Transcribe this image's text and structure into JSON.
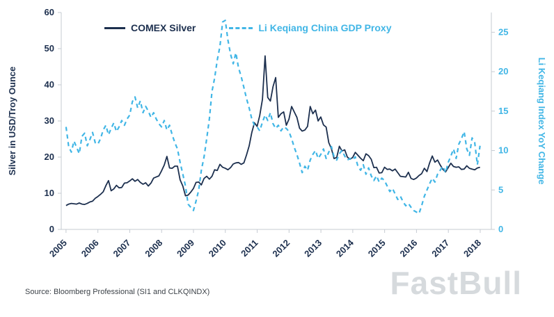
{
  "chart_data": {
    "type": "line",
    "title": "",
    "x_start": 2005,
    "x_step_years": 0.0833,
    "x_ticks": [
      2005,
      2006,
      2007,
      2008,
      2009,
      2010,
      2011,
      2012,
      2013,
      2014,
      2015,
      2016,
      2017,
      2018
    ],
    "left": {
      "label": "Silver in USD/Troy Ounce",
      "ticks": [
        0,
        10,
        20,
        30,
        40,
        50,
        60
      ],
      "lim": [
        0,
        60
      ],
      "color": "#1c2f4e"
    },
    "right": {
      "label": "Li Keqiang Index YoY Change",
      "ticks": [
        0,
        5,
        10,
        15,
        20,
        25
      ],
      "lim": [
        0,
        27.5
      ],
      "color": "#41b6e6"
    },
    "series": [
      {
        "name": "COMEX Silver",
        "axis": "left",
        "color": "#1c2f4e",
        "dash": null,
        "values": [
          6.6,
          7.0,
          7.2,
          7.1,
          7.0,
          7.3,
          7.0,
          6.9,
          7.2,
          7.6,
          7.8,
          8.6,
          9.1,
          9.7,
          10.4,
          12.1,
          13.5,
          10.7,
          11.2,
          12.2,
          11.5,
          11.6,
          12.8,
          12.9,
          13.4,
          14.0,
          13.3,
          13.8,
          13.0,
          12.5,
          12.9,
          12.0,
          12.8,
          14.2,
          14.5,
          14.8,
          16.2,
          17.8,
          20.2,
          17.0,
          16.9,
          17.5,
          17.5,
          13.7,
          12.0,
          9.3,
          9.5,
          10.3,
          11.3,
          13.0,
          13.1,
          12.3,
          14.1,
          14.7,
          13.9,
          14.7,
          16.5,
          16.3,
          18.0,
          17.2,
          16.9,
          16.5,
          17.1,
          18.1,
          18.4,
          18.5,
          18.0,
          18.4,
          20.6,
          23.1,
          26.8,
          29.5,
          28.5,
          31.5,
          36.0,
          48.0,
          36.5,
          35.5,
          39.5,
          42.0,
          31.0,
          32.0,
          32.5,
          28.8,
          30.5,
          34.0,
          32.5,
          31.0,
          28.0,
          27.2,
          27.5,
          28.5,
          34.0,
          32.0,
          33.0,
          30.0,
          31.1,
          28.9,
          28.3,
          24.0,
          22.3,
          19.6,
          19.9,
          23.0,
          21.7,
          22.0,
          20.0,
          19.4,
          19.9,
          21.3,
          20.5,
          19.7,
          19.0,
          20.9,
          20.4,
          19.4,
          17.1,
          17.2,
          15.6,
          15.7,
          17.2,
          16.6,
          16.7,
          16.2,
          16.7,
          15.7,
          14.7,
          14.6,
          14.5,
          15.8,
          14.1,
          13.8,
          14.2,
          14.9,
          15.4,
          16.9,
          16.0,
          18.4,
          20.3,
          18.6,
          19.2,
          17.8,
          16.6,
          15.9,
          17.1,
          18.3,
          17.4,
          17.2,
          17.3,
          16.6,
          16.7,
          17.6,
          16.9,
          16.7,
          16.5,
          17.0,
          17.2
        ]
      },
      {
        "name": "Li Keqiang China GDP Proxy",
        "axis": "right",
        "color": "#41b6e6",
        "dash": "6,5",
        "values": [
          13.0,
          10.5,
          9.8,
          11.2,
          10.4,
          9.6,
          11.8,
          12.2,
          10.6,
          11.4,
          12.3,
          11.0,
          10.8,
          11.5,
          12.6,
          13.2,
          12.0,
          12.8,
          13.5,
          12.4,
          13.0,
          13.8,
          13.2,
          14.0,
          14.5,
          16.2,
          16.8,
          15.4,
          16.3,
          14.8,
          15.6,
          15.0,
          14.2,
          14.8,
          14.0,
          13.4,
          13.0,
          13.8,
          12.6,
          13.2,
          12.0,
          11.0,
          10.2,
          8.5,
          7.0,
          5.5,
          3.2,
          2.8,
          2.4,
          3.6,
          5.0,
          7.5,
          9.2,
          11.5,
          14.0,
          17.5,
          19.2,
          21.5,
          23.2,
          26.3,
          26.5,
          24.0,
          22.2,
          21.0,
          22.4,
          20.5,
          19.4,
          18.0,
          16.6,
          15.4,
          14.0,
          13.2,
          13.0,
          12.5,
          13.6,
          14.5,
          13.8,
          14.8,
          13.4,
          12.8,
          13.2,
          12.5,
          13.0,
          12.8,
          12.4,
          11.5,
          10.4,
          9.5,
          8.4,
          7.2,
          8.0,
          7.5,
          8.8,
          9.5,
          10.0,
          9.0,
          9.5,
          10.2,
          9.0,
          9.8,
          10.5,
          9.2,
          8.8,
          9.6,
          10.0,
          9.3,
          8.8,
          9.0,
          8.8,
          9.2,
          8.0,
          7.5,
          8.2,
          7.0,
          7.8,
          6.8,
          6.2,
          6.8,
          6.0,
          6.5,
          6.2,
          5.5,
          4.8,
          5.2,
          4.5,
          3.8,
          4.2,
          3.5,
          3.0,
          3.3,
          2.8,
          2.4,
          2.2,
          2.0,
          3.0,
          4.2,
          5.0,
          5.8,
          6.5,
          6.0,
          7.0,
          7.5,
          8.0,
          7.2,
          8.5,
          9.3,
          10.2,
          9.0,
          10.8,
          11.5,
          12.4,
          10.2,
          9.4,
          11.6,
          11.0,
          8.2,
          10.6
        ]
      }
    ],
    "legend_position": "top",
    "grid": false
  },
  "source_text": "Source: Bloomberg Professional (SI1 and CLKQINDX)",
  "watermark_text": "FastBull"
}
